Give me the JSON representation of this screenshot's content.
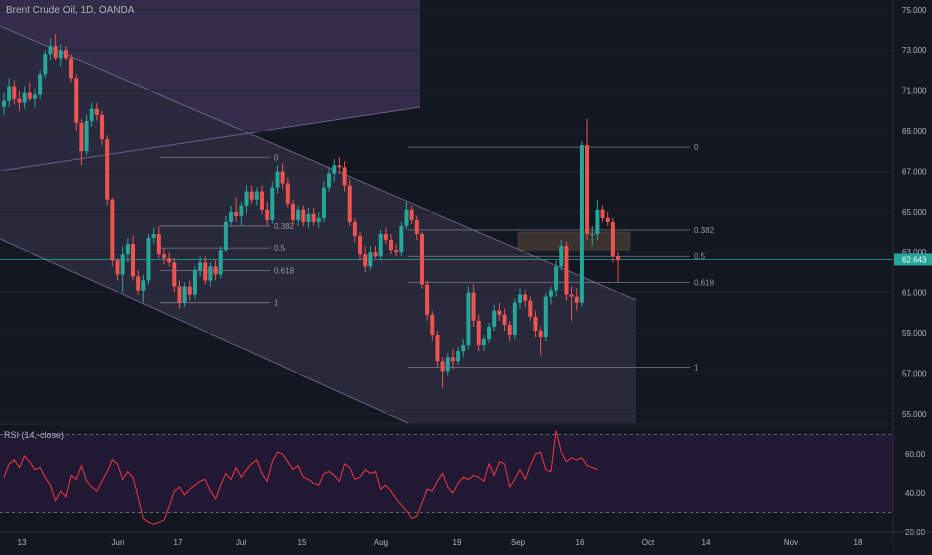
{
  "header": {
    "title": "Brent Crude Oil, 1D, OANDA"
  },
  "rsi": {
    "label": "RSI (14,-close)",
    "ticks": [
      "60.00",
      "40.00",
      "20.00"
    ],
    "values": [
      48,
      55,
      57,
      53,
      59,
      56,
      52,
      53,
      48,
      44,
      36,
      41,
      38,
      49,
      47,
      54,
      46,
      43,
      41,
      46,
      51,
      57,
      55,
      47,
      51,
      48,
      38,
      27,
      25,
      24,
      25,
      26,
      33,
      41,
      43,
      39,
      42,
      44,
      46,
      47,
      41,
      37,
      44,
      50,
      47,
      53,
      48,
      52,
      55,
      57,
      50,
      46,
      56,
      61,
      60,
      56,
      52,
      54,
      48,
      47,
      45,
      44,
      50,
      51,
      49,
      46,
      55,
      53,
      47,
      48,
      52,
      50,
      51,
      42,
      44,
      41,
      37,
      34,
      31,
      27,
      28,
      35,
      42,
      41,
      46,
      50,
      43,
      40,
      45,
      48,
      47,
      49,
      48,
      46,
      55,
      49,
      56,
      55,
      43,
      47,
      52,
      47,
      54,
      60,
      61,
      52,
      51,
      72,
      61,
      56,
      58,
      57,
      58,
      54,
      53,
      52
    ]
  },
  "price_axis": {
    "ticks": [
      "75.000",
      "73.000",
      "71.000",
      "69.000",
      "67.000",
      "65.000",
      "63.000",
      "61.000",
      "59.000",
      "57.000",
      "55.000"
    ],
    "last_price": "62.643",
    "last_price_color": "#26a69a"
  },
  "time_axis": {
    "ticks": [
      "13",
      "Jun",
      "17",
      "Jul",
      "15",
      "Aug",
      "19",
      "Sep",
      "16",
      "Oct",
      "14",
      "Nov",
      "18"
    ]
  },
  "fib_right": [
    {
      "level": "0",
      "value": 68.2
    },
    {
      "level": "0.382",
      "value": 64.1
    },
    {
      "level": "0.5",
      "value": 62.8
    },
    {
      "level": "0.618",
      "value": 61.5
    },
    {
      "level": "1",
      "value": 57.3
    }
  ],
  "fib_left": [
    {
      "level": "0",
      "value": 67.7
    },
    {
      "level": "0.382",
      "value": 64.3
    },
    {
      "level": "0.5",
      "value": 63.2
    },
    {
      "level": "0.618",
      "value": 62.1
    },
    {
      "level": "1",
      "value": 60.5
    }
  ],
  "colors": {
    "up": "#26a69a",
    "down": "#ef5350",
    "background": "#131722",
    "channel_fill": "#2a2a3e",
    "rsi_band": "#241a35",
    "rsi_line": "#f23645"
  },
  "chart_data": {
    "type": "candlestick",
    "symbol": "Brent Crude Oil",
    "interval": "1D",
    "ylim": [
      54,
      75.5
    ],
    "candles": [
      [
        70.2,
        70.9,
        69.8,
        70.5
      ],
      [
        70.5,
        71.6,
        70.2,
        71.2
      ],
      [
        71.2,
        71.5,
        70.3,
        70.6
      ],
      [
        70.6,
        71.0,
        70.0,
        70.4
      ],
      [
        70.4,
        71.2,
        70.1,
        70.9
      ],
      [
        70.9,
        71.4,
        70.5,
        70.6
      ],
      [
        70.6,
        71.1,
        70.2,
        70.8
      ],
      [
        70.8,
        72.0,
        70.6,
        71.8
      ],
      [
        71.8,
        73.0,
        71.6,
        72.8
      ],
      [
        72.8,
        73.6,
        72.5,
        73.2
      ],
      [
        73.2,
        73.8,
        72.5,
        72.6
      ],
      [
        72.6,
        73.3,
        72.2,
        73.0
      ],
      [
        73.0,
        73.2,
        72.5,
        72.6
      ],
      [
        72.6,
        72.8,
        71.4,
        71.6
      ],
      [
        71.6,
        71.8,
        69.0,
        69.4
      ],
      [
        69.4,
        69.6,
        67.3,
        68.0
      ],
      [
        68.0,
        69.8,
        67.8,
        69.5
      ],
      [
        69.5,
        70.4,
        69.2,
        70.1
      ],
      [
        70.1,
        70.4,
        69.5,
        69.8
      ],
      [
        69.8,
        70.0,
        68.3,
        68.6
      ],
      [
        68.6,
        68.8,
        65.3,
        65.6
      ],
      [
        65.6,
        65.7,
        62.3,
        62.6
      ],
      [
        62.6,
        62.7,
        61.6,
        61.9
      ],
      [
        61.9,
        63.3,
        61.0,
        62.9
      ],
      [
        62.9,
        63.7,
        62.5,
        63.4
      ],
      [
        63.4,
        63.8,
        61.6,
        61.8
      ],
      [
        61.8,
        62.1,
        60.9,
        61.1
      ],
      [
        61.1,
        61.9,
        60.5,
        61.6
      ],
      [
        61.6,
        63.9,
        61.4,
        63.7
      ],
      [
        63.7,
        64.2,
        63.4,
        63.9
      ],
      [
        63.9,
        64.3,
        62.7,
        62.9
      ],
      [
        62.9,
        63.2,
        62.4,
        62.7
      ],
      [
        62.7,
        63.0,
        62.3,
        62.5
      ],
      [
        62.5,
        62.7,
        61.0,
        61.3
      ],
      [
        61.3,
        61.6,
        60.2,
        60.5
      ],
      [
        60.5,
        61.5,
        60.3,
        61.3
      ],
      [
        61.3,
        61.6,
        60.6,
        60.9
      ],
      [
        60.9,
        62.3,
        60.7,
        62.1
      ],
      [
        62.1,
        62.8,
        61.8,
        62.5
      ],
      [
        62.5,
        62.8,
        61.4,
        61.6
      ],
      [
        61.6,
        62.5,
        61.3,
        62.3
      ],
      [
        62.3,
        62.6,
        61.6,
        61.9
      ],
      [
        61.9,
        63.3,
        61.7,
        63.1
      ],
      [
        63.1,
        64.8,
        63.0,
        64.5
      ],
      [
        64.5,
        65.3,
        64.3,
        65.0
      ],
      [
        65.0,
        65.7,
        64.5,
        64.8
      ],
      [
        64.8,
        65.5,
        64.3,
        65.3
      ],
      [
        65.3,
        66.3,
        64.9,
        66.0
      ],
      [
        66.0,
        66.3,
        65.4,
        65.6
      ],
      [
        65.6,
        66.2,
        65.3,
        66.0
      ],
      [
        66.0,
        66.3,
        64.9,
        65.1
      ],
      [
        65.1,
        65.5,
        64.3,
        64.6
      ],
      [
        64.6,
        66.5,
        64.4,
        66.2
      ],
      [
        66.2,
        67.3,
        65.9,
        67.0
      ],
      [
        67.0,
        67.4,
        66.1,
        66.4
      ],
      [
        66.4,
        66.7,
        65.2,
        65.4
      ],
      [
        65.4,
        65.6,
        64.3,
        64.6
      ],
      [
        64.6,
        65.3,
        64.3,
        65.1
      ],
      [
        65.1,
        65.3,
        64.3,
        64.5
      ],
      [
        64.5,
        65.2,
        64.2,
        64.9
      ],
      [
        64.9,
        65.2,
        64.3,
        64.5
      ],
      [
        64.5,
        65.0,
        64.2,
        64.7
      ],
      [
        64.7,
        66.5,
        64.5,
        66.2
      ],
      [
        66.2,
        67.2,
        66.0,
        66.9
      ],
      [
        66.9,
        67.6,
        66.5,
        67.3
      ],
      [
        67.3,
        67.7,
        66.9,
        67.2
      ],
      [
        67.2,
        67.5,
        66.0,
        66.3
      ],
      [
        66.3,
        66.6,
        64.3,
        64.5
      ],
      [
        64.5,
        64.7,
        63.5,
        63.8
      ],
      [
        63.8,
        64.0,
        62.6,
        62.9
      ],
      [
        62.9,
        63.3,
        62.0,
        62.3
      ],
      [
        62.3,
        63.3,
        62.1,
        63.0
      ],
      [
        63.0,
        63.3,
        62.7,
        62.8
      ],
      [
        62.8,
        64.1,
        62.6,
        63.9
      ],
      [
        63.9,
        64.2,
        63.4,
        63.6
      ],
      [
        63.6,
        63.9,
        62.9,
        63.1
      ],
      [
        63.1,
        63.4,
        62.8,
        63.0
      ],
      [
        63.0,
        64.5,
        62.8,
        64.3
      ],
      [
        64.3,
        65.5,
        64.1,
        65.1
      ],
      [
        65.1,
        65.3,
        64.4,
        64.6
      ],
      [
        64.6,
        64.8,
        63.6,
        63.9
      ],
      [
        63.9,
        64.0,
        61.2,
        61.4
      ],
      [
        61.4,
        61.6,
        59.6,
        59.9
      ],
      [
        59.9,
        60.1,
        58.6,
        58.9
      ],
      [
        58.9,
        59.1,
        57.3,
        57.6
      ],
      [
        57.6,
        57.8,
        56.3,
        57.1
      ],
      [
        57.1,
        58.0,
        56.9,
        57.8
      ],
      [
        57.8,
        58.2,
        57.2,
        57.6
      ],
      [
        57.6,
        58.3,
        57.4,
        58.1
      ],
      [
        58.1,
        58.7,
        57.8,
        58.4
      ],
      [
        58.4,
        61.3,
        58.2,
        61.0
      ],
      [
        61.0,
        61.4,
        59.3,
        59.6
      ],
      [
        59.6,
        59.9,
        58.1,
        58.4
      ],
      [
        58.4,
        58.9,
        58.1,
        58.7
      ],
      [
        58.7,
        59.5,
        58.5,
        59.3
      ],
      [
        59.3,
        60.4,
        59.1,
        60.1
      ],
      [
        60.1,
        60.5,
        59.6,
        59.9
      ],
      [
        59.9,
        60.2,
        59.1,
        59.4
      ],
      [
        59.4,
        59.6,
        58.6,
        58.9
      ],
      [
        58.9,
        60.7,
        58.7,
        60.5
      ],
      [
        60.5,
        61.2,
        60.2,
        60.9
      ],
      [
        60.9,
        61.1,
        60.3,
        60.6
      ],
      [
        60.6,
        60.8,
        59.6,
        59.8
      ],
      [
        59.8,
        60.1,
        58.8,
        59.1
      ],
      [
        59.1,
        59.3,
        57.9,
        58.8
      ],
      [
        58.8,
        61.0,
        58.6,
        60.8
      ],
      [
        60.8,
        61.3,
        60.4,
        61.1
      ],
      [
        61.1,
        62.6,
        60.8,
        62.3
      ],
      [
        62.3,
        63.6,
        62.1,
        63.3
      ],
      [
        63.3,
        63.5,
        60.6,
        60.9
      ],
      [
        60.9,
        61.3,
        59.6,
        60.8
      ],
      [
        60.8,
        61.2,
        60.1,
        60.5
      ],
      [
        60.5,
        68.5,
        60.3,
        68.3
      ],
      [
        68.3,
        69.6,
        63.6,
        63.9
      ],
      [
        63.9,
        64.3,
        63.3,
        63.9
      ],
      [
        63.9,
        65.6,
        63.6,
        65.1
      ],
      [
        65.1,
        65.3,
        64.5,
        64.7
      ],
      [
        64.7,
        65.0,
        64.3,
        64.5
      ],
      [
        64.5,
        64.7,
        62.5,
        62.8
      ],
      [
        62.8,
        63.0,
        61.5,
        62.6
      ]
    ],
    "x_tick_labels": [
      "13",
      "Jun",
      "17",
      "Jul",
      "15",
      "Aug",
      "19",
      "Sep",
      "16",
      "Oct",
      "14",
      "Nov",
      "18"
    ],
    "y_tick_labels": [
      "75.000",
      "73.000",
      "71.000",
      "69.000",
      "67.000",
      "65.000",
      "63.000",
      "61.000",
      "59.000",
      "57.000",
      "55.000"
    ]
  }
}
